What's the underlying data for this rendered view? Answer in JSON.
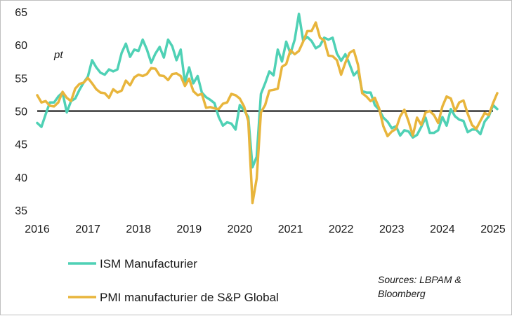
{
  "chart_data": {
    "type": "line",
    "title": "",
    "unit_label": "pt",
    "xlabel": "",
    "ylabel": "",
    "xlim": [
      2016.0,
      2025.1
    ],
    "ylim": [
      35,
      65
    ],
    "y_ticks": [
      35,
      40,
      45,
      50,
      55,
      60,
      65
    ],
    "x_ticks": [
      2016,
      2017,
      2018,
      2019,
      2020,
      2021,
      2022,
      2023,
      2024,
      2025
    ],
    "x_tick_labels": [
      "2016",
      "2017",
      "2018",
      "2019",
      "2020",
      "2021",
      "2022",
      "2023",
      "2024",
      "2025"
    ],
    "reference_line": 50,
    "grid": false,
    "legend_position": "bottom-left",
    "series": [
      {
        "name": "ISM Manufacturier",
        "color": "#4fd1b5",
        "x": [
          2016.0,
          2016.0833,
          2016.1667,
          2016.25,
          2016.3333,
          2016.4167,
          2016.5,
          2016.5833,
          2016.6667,
          2016.75,
          2016.8333,
          2016.9167,
          2017.0,
          2017.0833,
          2017.1667,
          2017.25,
          2017.3333,
          2017.4167,
          2017.5,
          2017.5833,
          2017.6667,
          2017.75,
          2017.8333,
          2017.9167,
          2018.0,
          2018.0833,
          2018.1667,
          2018.25,
          2018.3333,
          2018.4167,
          2018.5,
          2018.5833,
          2018.6667,
          2018.75,
          2018.8333,
          2018.9167,
          2019.0,
          2019.0833,
          2019.1667,
          2019.25,
          2019.3333,
          2019.4167,
          2019.5,
          2019.5833,
          2019.6667,
          2019.75,
          2019.8333,
          2019.9167,
          2020.0,
          2020.0833,
          2020.1667,
          2020.25,
          2020.3333,
          2020.4167,
          2020.5,
          2020.5833,
          2020.6667,
          2020.75,
          2020.8333,
          2020.9167,
          2021.0,
          2021.0833,
          2021.1667,
          2021.25,
          2021.3333,
          2021.4167,
          2021.5,
          2021.5833,
          2021.6667,
          2021.75,
          2021.8333,
          2021.9167,
          2022.0,
          2022.0833,
          2022.1667,
          2022.25,
          2022.3333,
          2022.4167,
          2022.5,
          2022.5833,
          2022.6667,
          2022.75,
          2022.8333,
          2022.9167,
          2023.0,
          2023.0833,
          2023.1667,
          2023.25,
          2023.3333,
          2023.4167,
          2023.5,
          2023.5833,
          2023.6667,
          2023.75,
          2023.8333,
          2023.9167,
          2024.0,
          2024.0833,
          2024.1667,
          2024.25,
          2024.3333,
          2024.4167,
          2024.5,
          2024.5833,
          2024.6667,
          2024.75,
          2024.8333,
          2024.9167,
          2025.0,
          2025.0833
        ],
        "values": [
          48.2,
          47.6,
          49.5,
          51.3,
          51.3,
          52.2,
          52.8,
          49.8,
          51.5,
          51.9,
          53.2,
          54.3,
          55.2,
          57.7,
          56.6,
          55.8,
          55.5,
          56.3,
          56.0,
          56.3,
          58.8,
          60.2,
          58.2,
          59.3,
          59.1,
          60.8,
          59.3,
          57.3,
          58.7,
          59.7,
          58.1,
          60.8,
          59.8,
          57.7,
          59.3,
          54.3,
          56.6,
          54.2,
          55.3,
          52.8,
          52.1,
          51.7,
          51.2,
          49.1,
          47.8,
          48.3,
          48.1,
          47.2,
          50.9,
          50.1,
          49.1,
          41.5,
          43.1,
          52.6,
          54.2,
          56.0,
          55.4,
          59.3,
          57.5,
          60.5,
          58.7,
          60.8,
          64.7,
          60.7,
          61.2,
          60.6,
          59.5,
          59.9,
          61.1,
          60.8,
          61.1,
          58.7,
          57.6,
          58.6,
          57.1,
          55.4,
          56.1,
          53.0,
          52.8,
          52.8,
          50.9,
          50.2,
          49.0,
          48.4,
          47.4,
          47.7,
          46.3,
          47.1,
          46.9,
          46.0,
          46.4,
          47.6,
          49.0,
          46.7,
          46.7,
          47.1,
          49.1,
          47.8,
          50.3,
          49.2,
          48.7,
          48.5,
          46.8,
          47.2,
          47.2,
          46.5,
          48.4,
          49.2,
          50.9,
          50.3
        ]
      },
      {
        "name": "PMI manufacturier de S&P Global",
        "color": "#e8b53c",
        "x": [
          2016.0,
          2016.0833,
          2016.1667,
          2016.25,
          2016.3333,
          2016.4167,
          2016.5,
          2016.5833,
          2016.6667,
          2016.75,
          2016.8333,
          2016.9167,
          2017.0,
          2017.0833,
          2017.1667,
          2017.25,
          2017.3333,
          2017.4167,
          2017.5,
          2017.5833,
          2017.6667,
          2017.75,
          2017.8333,
          2017.9167,
          2018.0,
          2018.0833,
          2018.1667,
          2018.25,
          2018.3333,
          2018.4167,
          2018.5,
          2018.5833,
          2018.6667,
          2018.75,
          2018.8333,
          2018.9167,
          2019.0,
          2019.0833,
          2019.1667,
          2019.25,
          2019.3333,
          2019.4167,
          2019.5,
          2019.5833,
          2019.6667,
          2019.75,
          2019.8333,
          2019.9167,
          2020.0,
          2020.0833,
          2020.1667,
          2020.25,
          2020.3333,
          2020.4167,
          2020.5,
          2020.5833,
          2020.6667,
          2020.75,
          2020.8333,
          2020.9167,
          2021.0,
          2021.0833,
          2021.1667,
          2021.25,
          2021.3333,
          2021.4167,
          2021.5,
          2021.5833,
          2021.6667,
          2021.75,
          2021.8333,
          2021.9167,
          2022.0,
          2022.0833,
          2022.1667,
          2022.25,
          2022.3333,
          2022.4167,
          2022.5,
          2022.5833,
          2022.6667,
          2022.75,
          2022.8333,
          2022.9167,
          2023.0,
          2023.0833,
          2023.1667,
          2023.25,
          2023.3333,
          2023.4167,
          2023.5,
          2023.5833,
          2023.6667,
          2023.75,
          2023.8333,
          2023.9167,
          2024.0,
          2024.0833,
          2024.1667,
          2024.25,
          2024.3333,
          2024.4167,
          2024.5,
          2024.5833,
          2024.6667,
          2024.75,
          2024.8333,
          2024.9167,
          2025.0,
          2025.0833
        ],
        "values": [
          52.4,
          51.3,
          51.5,
          50.8,
          50.7,
          51.3,
          52.9,
          52.0,
          51.5,
          53.4,
          54.1,
          54.3,
          55.0,
          54.2,
          53.3,
          52.8,
          52.7,
          52.0,
          53.3,
          52.8,
          53.1,
          54.6,
          53.9,
          55.1,
          55.5,
          55.3,
          55.6,
          56.5,
          56.4,
          55.4,
          55.3,
          54.7,
          55.6,
          55.7,
          55.3,
          53.8,
          54.9,
          53.0,
          52.4,
          52.6,
          50.5,
          50.6,
          50.4,
          50.3,
          51.1,
          51.3,
          52.6,
          52.4,
          51.9,
          50.7,
          48.5,
          36.1,
          39.8,
          49.8,
          50.9,
          53.1,
          53.2,
          53.4,
          56.7,
          57.1,
          59.2,
          58.6,
          59.1,
          60.5,
          62.1,
          62.1,
          63.4,
          61.1,
          60.7,
          58.4,
          58.3,
          57.7,
          55.5,
          57.3,
          58.8,
          59.2,
          57.0,
          52.7,
          52.2,
          51.5,
          52.0,
          50.4,
          47.7,
          46.2,
          46.9,
          47.3,
          49.2,
          50.2,
          48.4,
          46.3,
          49.0,
          47.9,
          49.8,
          50.0,
          49.4,
          48.2,
          50.7,
          52.2,
          51.9,
          50.0,
          51.3,
          51.6,
          49.6,
          47.9,
          47.3,
          48.5,
          49.7,
          49.4,
          51.2,
          52.7
        ]
      }
    ]
  },
  "legend": {
    "items": [
      {
        "label": "ISM Manufacturier"
      },
      {
        "label": "PMI manufacturier de S&P Global"
      }
    ]
  },
  "sources": {
    "line1": "Sources: LBPAM &",
    "line2": "Bloomberg"
  }
}
